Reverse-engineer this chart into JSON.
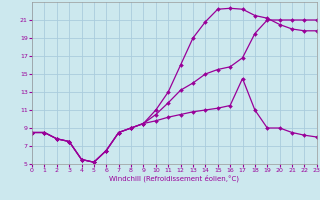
{
  "xlabel": "Windchill (Refroidissement éolien,°C)",
  "bg_color": "#cce8ee",
  "grid_color": "#aaccdd",
  "line_color": "#990099",
  "xmin": 0,
  "xmax": 23,
  "ymin": 5,
  "ymax": 23,
  "yticks": [
    5,
    7,
    9,
    11,
    13,
    15,
    17,
    19,
    21
  ],
  "xticks": [
    0,
    1,
    2,
    3,
    4,
    5,
    6,
    7,
    8,
    9,
    10,
    11,
    12,
    13,
    14,
    15,
    16,
    17,
    18,
    19,
    20,
    21,
    22,
    23
  ],
  "line1_x": [
    0,
    1,
    2,
    3,
    4,
    5,
    6,
    7,
    8,
    9,
    10,
    11,
    12,
    13,
    14,
    15,
    16,
    17,
    18,
    19,
    20,
    21,
    22,
    23
  ],
  "line1_y": [
    8.5,
    8.5,
    7.8,
    7.5,
    5.5,
    5.2,
    6.5,
    8.5,
    9.0,
    9.5,
    11.0,
    13.0,
    16.0,
    19.0,
    20.8,
    22.2,
    22.3,
    22.2,
    21.5,
    21.2,
    20.5,
    20.0,
    19.8,
    19.8
  ],
  "line2_x": [
    0,
    1,
    2,
    3,
    4,
    5,
    6,
    7,
    8,
    9,
    10,
    11,
    12,
    13,
    14,
    15,
    16,
    17,
    18,
    19,
    20,
    21,
    22,
    23
  ],
  "line2_y": [
    8.5,
    8.5,
    7.8,
    7.5,
    5.5,
    5.2,
    6.5,
    8.5,
    9.0,
    9.5,
    10.5,
    11.8,
    13.2,
    14.0,
    15.0,
    15.5,
    15.8,
    16.8,
    19.5,
    21.0,
    21.0,
    21.0,
    21.0,
    21.0
  ],
  "line3_x": [
    0,
    1,
    2,
    3,
    4,
    5,
    6,
    7,
    8,
    9,
    10,
    11,
    12,
    13,
    14,
    15,
    16,
    17,
    18,
    19,
    20,
    21,
    22,
    23
  ],
  "line3_y": [
    8.5,
    8.5,
    7.8,
    7.5,
    5.5,
    5.2,
    6.5,
    8.5,
    9.0,
    9.5,
    9.8,
    10.2,
    10.5,
    10.8,
    11.0,
    11.2,
    11.5,
    14.5,
    11.0,
    9.0,
    9.0,
    8.5,
    8.2,
    8.0
  ]
}
